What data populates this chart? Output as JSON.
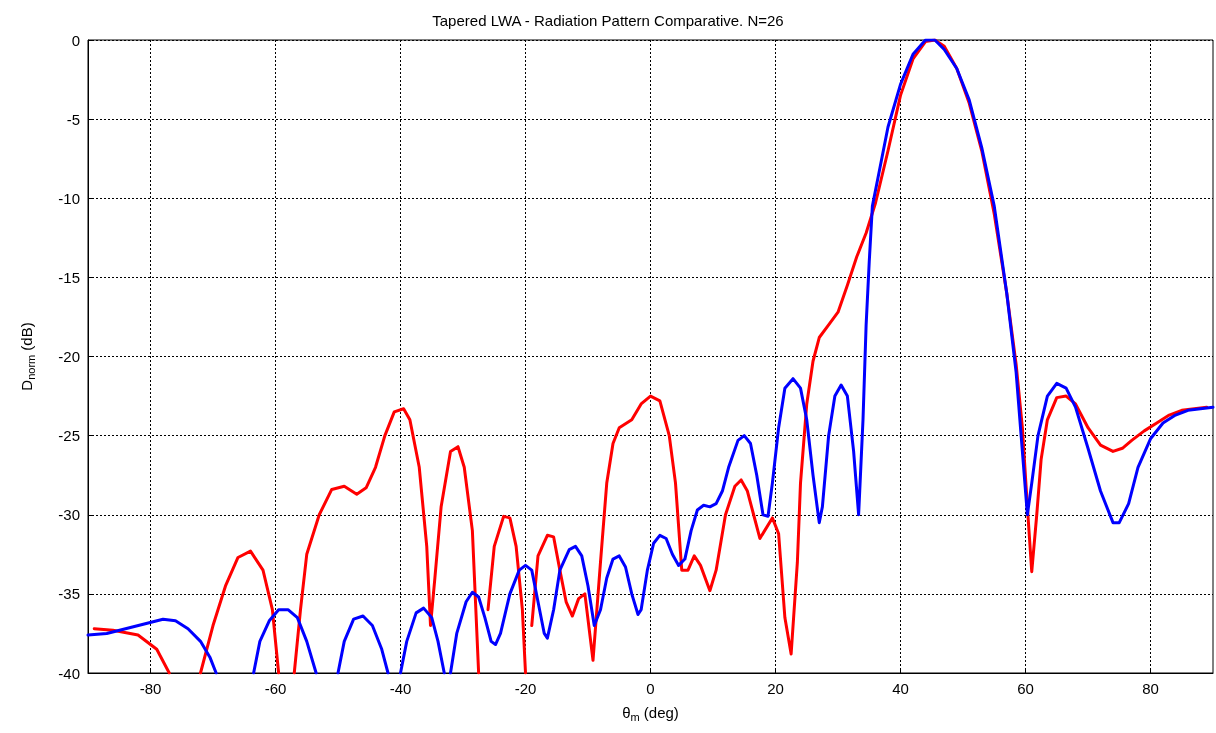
{
  "chart_data": {
    "type": "line",
    "title": "Tapered LWA - Radiation Pattern Comparative. N=26",
    "xlabel": "θ$_{m}$ (deg)",
    "ylabel": "D$_{norm}$ (dB)",
    "xlim": [
      -90,
      90
    ],
    "xticks": [
      -80,
      -60,
      -40,
      -20,
      0,
      20,
      40,
      60,
      80
    ],
    "ylim": [
      -40,
      0
    ],
    "yticks": [
      -40,
      -35,
      -30,
      -25,
      -20,
      -15,
      -10,
      -5,
      0
    ],
    "grid": true,
    "marker": "none",
    "line_style": "solid",
    "series": [
      {
        "color": "#ff0000",
        "x": [
          -89,
          -86,
          -82,
          -79,
          -77,
          -74.5,
          -72,
          -70,
          -68,
          -66,
          -64,
          -62,
          -60.5,
          -59.5,
          -58.2,
          -57,
          -56,
          -55,
          -53,
          -51,
          -49,
          -47,
          -45.5,
          -44,
          -42.5,
          -41,
          -39.5,
          -38.5,
          -37,
          -35.8,
          -35.2,
          -34.5,
          -33.5,
          -32,
          -30.8,
          -29.8,
          -28.5,
          -27.5,
          -26.8,
          -26,
          -25,
          -23.5,
          -22.5,
          -21.5,
          -20.5,
          -20,
          -19.5,
          -19,
          -18,
          -16.5,
          -15.5,
          -14.5,
          -13.5,
          -12.5,
          -11.5,
          -10.5,
          -9.2,
          -8,
          -7,
          -6,
          -5,
          -3,
          -1.5,
          0,
          1.5,
          3,
          4,
          5,
          6,
          7,
          8,
          9.5,
          10.5,
          12,
          13.5,
          14.5,
          15.5,
          16.5,
          17.5,
          19.5,
          20.5,
          21.5,
          22.5,
          23.5,
          24,
          25,
          26,
          27,
          28.5,
          30,
          31.5,
          33,
          34.5,
          36,
          38,
          40,
          42,
          44,
          45.5,
          47,
          49,
          51,
          53,
          55,
          57,
          58.5,
          59.5,
          60.3,
          61,
          61.8,
          62.5,
          63.5,
          65,
          66.5,
          68,
          70,
          72,
          74,
          75.5,
          77,
          79,
          81,
          83,
          85,
          87,
          89
        ],
        "values": [
          -37.2,
          -37.3,
          -37.6,
          -38.5,
          -40,
          null,
          -40,
          -37,
          -34.5,
          -32.7,
          -32.3,
          -33.5,
          -36,
          -40,
          null,
          -40,
          -36,
          -32.5,
          -30,
          -28.4,
          -28.2,
          -28.7,
          -28.3,
          -27,
          -25,
          -23.5,
          -23.3,
          -24,
          -27,
          -32,
          -37,
          -34,
          -29.5,
          -26,
          -25.7,
          -27,
          -31,
          -40,
          null,
          -36,
          -32,
          -30.1,
          -30.2,
          -32,
          -36,
          -40,
          null,
          -37,
          -32.6,
          -31.3,
          -31.4,
          -33.5,
          -35.5,
          -36.4,
          -35.3,
          -35,
          -39.2,
          -33,
          -28,
          -25.5,
          -24.5,
          -24,
          -23,
          -22.5,
          -22.8,
          -25,
          -28,
          -33.5,
          -33.5,
          -32.6,
          -33.2,
          -34.8,
          -33.5,
          -30,
          -28.2,
          -27.8,
          -28.5,
          -30,
          -31.5,
          -30.2,
          -31.2,
          -36.5,
          -38.8,
          -33,
          -28,
          -23,
          -20.3,
          -18.8,
          -18,
          -17.2,
          -15.5,
          -13.7,
          -12.2,
          -10.3,
          -7,
          -3.5,
          -1.2,
          -0.1,
          0,
          -0.4,
          -1.8,
          -4,
          -7,
          -11,
          -16,
          -20.5,
          -24.5,
          -29.5,
          -33.6,
          -30,
          -26.5,
          -24,
          -22.6,
          -22.5,
          -23,
          -24.5,
          -25.6,
          -26,
          -25.8,
          -25.3,
          -24.7,
          -24.2,
          -23.7,
          -23.4,
          -23.3,
          -23.2
        ]
      },
      {
        "color": "#0000ff",
        "x": [
          -90,
          -87,
          -84,
          -81,
          -78,
          -76,
          -74,
          -72,
          -70.5,
          -69.5,
          -66.5,
          -63.5,
          -62.5,
          -61,
          -59.5,
          -58,
          -56.5,
          -55,
          -53.5,
          -51.7,
          -50,
          -49,
          -47.5,
          -46,
          -44.5,
          -43,
          -42,
          -41,
          -40,
          -39,
          -37.5,
          -36.3,
          -35,
          -34,
          -33,
          -32.5,
          -32,
          -31,
          -29.5,
          -28.5,
          -27.5,
          -26.5,
          -25.5,
          -24.8,
          -24,
          -22.5,
          -21,
          -20,
          -19,
          -18,
          -17,
          -16.5,
          -15.5,
          -14.5,
          -13,
          -12,
          -11,
          -10,
          -9,
          -8,
          -7,
          -6,
          -5,
          -4,
          -3,
          -2,
          -1.5,
          -0.5,
          0.5,
          1.5,
          2.5,
          3.5,
          4.5,
          5.5,
          6.5,
          7.5,
          8.5,
          9.5,
          10.5,
          11.5,
          12.5,
          14,
          15,
          16,
          17,
          18,
          18.8,
          19.5,
          20.5,
          21.5,
          22.8,
          24,
          25,
          26,
          27,
          27.5,
          28.5,
          29.5,
          30.5,
          31.5,
          32.5,
          33.3,
          34,
          34.5,
          35,
          35.5,
          36.5,
          38,
          40,
          42,
          44,
          45.5,
          47,
          49,
          51,
          53,
          55,
          57,
          58.5,
          59.5,
          60.3,
          61,
          62,
          63.5,
          65,
          66.5,
          68,
          70,
          72,
          74,
          75,
          76.5,
          78,
          80,
          82,
          84,
          86,
          88,
          90
        ],
        "values": [
          -37.6,
          -37.5,
          -37.2,
          -36.9,
          -36.6,
          -36.7,
          -37.2,
          -38,
          -39,
          -40,
          null,
          -40,
          -38,
          -36.7,
          -36,
          -36,
          -36.5,
          -38,
          -40,
          null,
          -40,
          -38,
          -36.6,
          -36.4,
          -37,
          -38.5,
          -40,
          null,
          -40,
          -38,
          -36.2,
          -35.9,
          -36.5,
          -38,
          -40,
          null,
          -40,
          -37.5,
          -35.5,
          -34.9,
          -35.2,
          -36.5,
          -38,
          -38.2,
          -37.5,
          -35,
          -33.5,
          -33.2,
          -33.5,
          -35.5,
          -37.5,
          -37.8,
          -36,
          -33.5,
          -32.2,
          -32,
          -32.6,
          -34.5,
          -37,
          -36,
          -34,
          -32.8,
          -32.6,
          -33.3,
          -35,
          -36.3,
          -36,
          -33.5,
          -31.8,
          -31.3,
          -31.5,
          -32.5,
          -33.2,
          -32.8,
          -31,
          -29.7,
          -29.4,
          -29.5,
          -29.3,
          -28.5,
          -27,
          -25.3,
          -25,
          -25.5,
          -27.5,
          -30,
          -30.1,
          -28,
          -24.5,
          -22,
          -21.4,
          -22,
          -24,
          -27.5,
          -30.5,
          -29.5,
          -25,
          -22.5,
          -21.8,
          -22.5,
          -26,
          -30,
          -24,
          -18,
          -14,
          -10.5,
          -8.5,
          -5.5,
          -2.8,
          -0.9,
          0,
          0,
          -0.6,
          -1.8,
          -3.8,
          -6.8,
          -10.5,
          -16,
          -21,
          -26,
          -30,
          -28,
          -25,
          -22.5,
          -21.7,
          -22,
          -23.2,
          -25.8,
          -28.5,
          -30.5,
          -30.5,
          -29.3,
          -27,
          -25.2,
          -24.2,
          -23.7,
          -23.4,
          -23.3,
          -23.2
        ]
      }
    ]
  }
}
